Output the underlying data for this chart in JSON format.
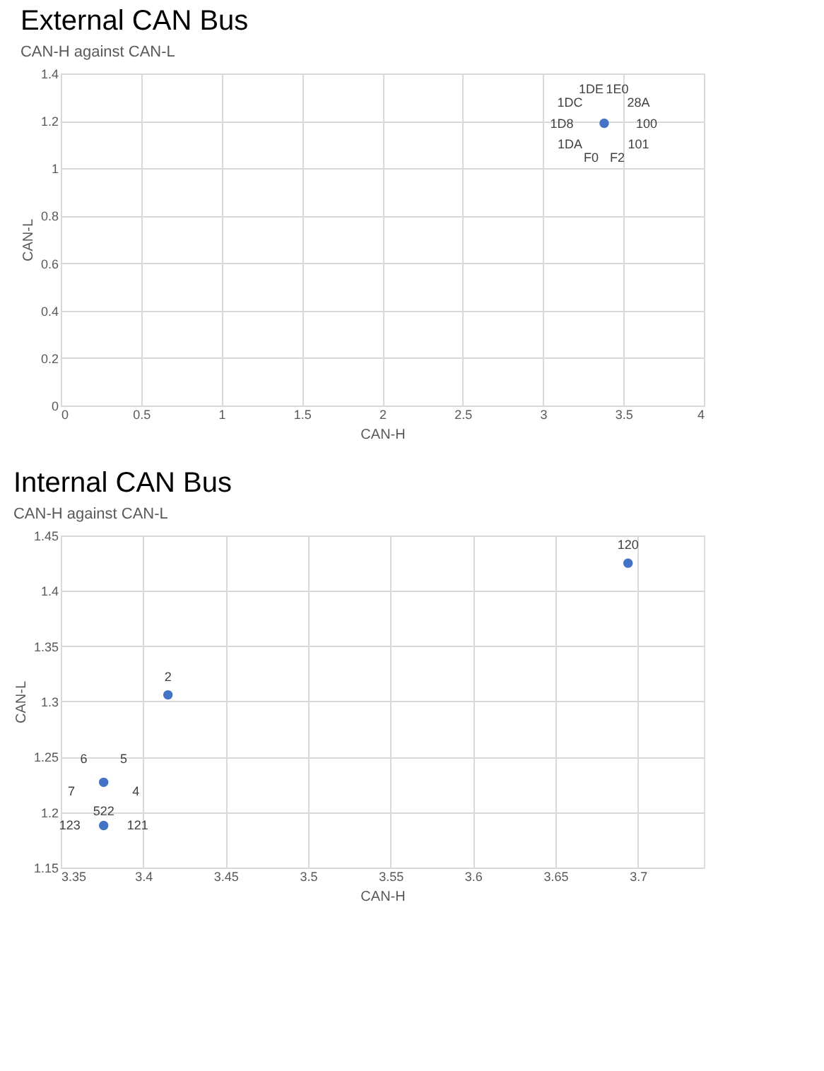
{
  "chart_data": [
    {
      "type": "scatter",
      "title": "External CAN Bus",
      "subtitle": "CAN-H against CAN-L",
      "xlabel": "CAN-H",
      "ylabel": "CAN-L",
      "xlim": [
        0,
        4
      ],
      "ylim": [
        0,
        1.4
      ],
      "xticks": [
        0,
        0.5,
        1,
        1.5,
        2,
        2.5,
        3,
        3.5,
        4
      ],
      "yticks": [
        0,
        0.2,
        0.4,
        0.6,
        0.8,
        1,
        1.2,
        1.4
      ],
      "grid": true,
      "marker": "circle",
      "x": [
        3.38
      ],
      "series": [
        {
          "color": "#4472c4",
          "values": [
            1.19
          ]
        }
      ],
      "annotations": [
        {
          "text": "1E0",
          "x": 3.38,
          "y": 1.19
        },
        {
          "text": "28A",
          "x": 3.38,
          "y": 1.19
        },
        {
          "text": "100",
          "x": 3.38,
          "y": 1.19
        },
        {
          "text": "101",
          "x": 3.38,
          "y": 1.19
        },
        {
          "text": "F2",
          "x": 3.38,
          "y": 1.19
        },
        {
          "text": "F0",
          "x": 3.38,
          "y": 1.19
        },
        {
          "text": "1DA",
          "x": 3.38,
          "y": 1.19
        },
        {
          "text": "1D8",
          "x": 3.38,
          "y": 1.19
        },
        {
          "text": "1DC",
          "x": 3.38,
          "y": 1.19
        },
        {
          "text": "1DE",
          "x": 3.38,
          "y": 1.19
        }
      ]
    },
    {
      "type": "scatter",
      "title": "Internal CAN Bus",
      "subtitle": "CAN-H against CAN-L",
      "xlabel": "CAN-H",
      "ylabel": "CAN-L",
      "xlim": [
        3.35,
        3.74
      ],
      "ylim": [
        1.15,
        1.45
      ],
      "xticks": [
        3.35,
        3.4,
        3.45,
        3.5,
        3.55,
        3.6,
        3.65,
        3.7
      ],
      "yticks": [
        1.15,
        1.2,
        1.25,
        1.3,
        1.35,
        1.4,
        1.45
      ],
      "grid": true,
      "marker": "circle",
      "x": [
        3.376,
        3.376,
        3.415,
        3.694
      ],
      "series": [
        {
          "color": "#4472c4",
          "values": [
            1.227,
            1.188,
            1.306,
            1.425
          ]
        }
      ],
      "annotations": [
        {
          "text": "5",
          "x": 3.376,
          "y": 1.227
        },
        {
          "text": "4",
          "x": 3.376,
          "y": 1.227
        },
        {
          "text": "522",
          "x": 3.376,
          "y": 1.227
        },
        {
          "text": "7",
          "x": 3.376,
          "y": 1.227
        },
        {
          "text": "6",
          "x": 3.376,
          "y": 1.227
        },
        {
          "text": "121",
          "x": 3.376,
          "y": 1.188
        },
        {
          "text": "123",
          "x": 3.376,
          "y": 1.188
        },
        {
          "text": "2",
          "x": 3.415,
          "y": 1.306
        },
        {
          "text": "120",
          "x": 3.694,
          "y": 1.425
        }
      ]
    }
  ]
}
